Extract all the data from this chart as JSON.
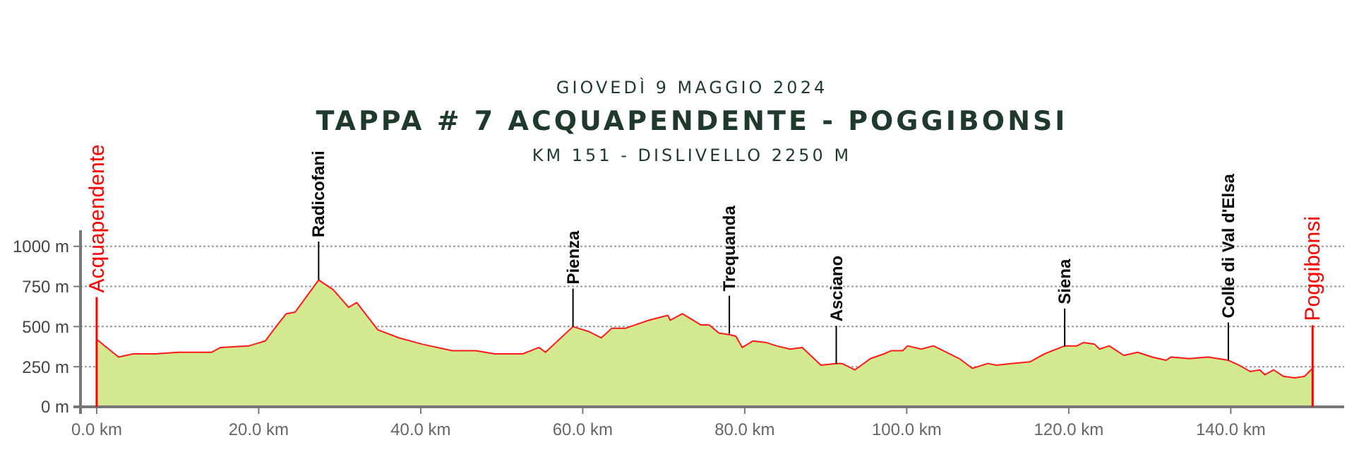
{
  "chart_data": {
    "type": "area",
    "title": "TAPPA # 7 ACQUAPENDENTE - POGGIBONSI",
    "subtitle": "KM 151 - DISLIVELLO 2250 M",
    "x": [
      0,
      2.7,
      4.5,
      7.2,
      10.1,
      14.2,
      15.3,
      18.8,
      20.8,
      22.3,
      23.4,
      24.5,
      27.4,
      29.2,
      31.1,
      32.1,
      34.7,
      37.3,
      40.2,
      43.9,
      46.8,
      49.1,
      52.6,
      54.6,
      55.4,
      58.8,
      60.7,
      62.3,
      63.6,
      65.3,
      68.2,
      70.5,
      70.8,
      72.3,
      74.6,
      75.6,
      76.8,
      78.1,
      78.9,
      79.7,
      81.0,
      82.7,
      83.9,
      85.6,
      87.1,
      89.4,
      91.3,
      92.0,
      93.6,
      95.5,
      97.2,
      98.1,
      99.5,
      100.1,
      101.8,
      103.3,
      106.5,
      108.1,
      110.0,
      111.1,
      112.9,
      115.2,
      117.0,
      119.5,
      121.0,
      121.8,
      123.2,
      123.8,
      125.0,
      126.8,
      128.5,
      130.3,
      132.0,
      132.6,
      134.9,
      137.2,
      139.7,
      141.0,
      142.4,
      143.6,
      144.2,
      145.3,
      146.5,
      147.9,
      149.1,
      150.1
    ],
    "series": [
      {
        "color": "#d3e98f",
        "values": [
          420,
          310,
          330,
          330,
          340,
          340,
          370,
          380,
          410,
          510,
          580,
          590,
          790,
          730,
          620,
          650,
          480,
          430,
          390,
          350,
          350,
          330,
          330,
          370,
          340,
          500,
          470,
          430,
          490,
          490,
          540,
          570,
          540,
          580,
          510,
          510,
          460,
          450,
          440,
          370,
          410,
          400,
          380,
          360,
          370,
          260,
          270,
          270,
          230,
          300,
          330,
          350,
          350,
          380,
          360,
          380,
          300,
          240,
          270,
          260,
          270,
          280,
          330,
          380,
          380,
          400,
          390,
          360,
          380,
          320,
          340,
          310,
          290,
          310,
          300,
          310,
          290,
          260,
          220,
          230,
          200,
          230,
          190,
          180,
          190,
          240
        ]
      }
    ],
    "xlim": [
      -2,
      154
    ],
    "ylim": [
      0,
      1100
    ],
    "xticks": [
      {
        "value": 0,
        "label": "0.0 km"
      },
      {
        "value": 20,
        "label": "20.0 km"
      },
      {
        "value": 40,
        "label": "40.0 km"
      },
      {
        "value": 60,
        "label": "60.0 km"
      },
      {
        "value": 80,
        "label": "80.0 km"
      },
      {
        "value": 100,
        "label": "100.0 km"
      },
      {
        "value": 120,
        "label": "120.0 km"
      },
      {
        "value": 140,
        "label": "140.0 km"
      }
    ],
    "yticks": [
      {
        "value": 0,
        "label": "0 m"
      },
      {
        "value": 250,
        "label": "250 m"
      },
      {
        "value": 500,
        "label": "500 m"
      },
      {
        "value": 750,
        "label": "750 m"
      },
      {
        "value": 1000,
        "label": "1000 m"
      }
    ],
    "grid": "y",
    "annotations": [
      "GIOVEDÌ 9 MAGGIO 2024",
      {
        "text": "Acquapendente",
        "x": 0,
        "y": 420
      },
      {
        "text": "Radicofani",
        "x": 27.4,
        "y": 792
      },
      {
        "text": "Pienza",
        "x": 58.8,
        "y": 499
      },
      {
        "text": "Trequanda",
        "x": 78.1,
        "y": 455
      },
      {
        "text": "Asciano",
        "x": 91.3,
        "y": 267
      },
      {
        "text": "Siena",
        "x": 119.5,
        "y": 375
      },
      {
        "text": "Colle di Val  d'Elsa",
        "x": 139.7,
        "y": 288
      },
      {
        "text": "Poggibonsi",
        "x": 150.1,
        "y": 244
      }
    ]
  }
}
